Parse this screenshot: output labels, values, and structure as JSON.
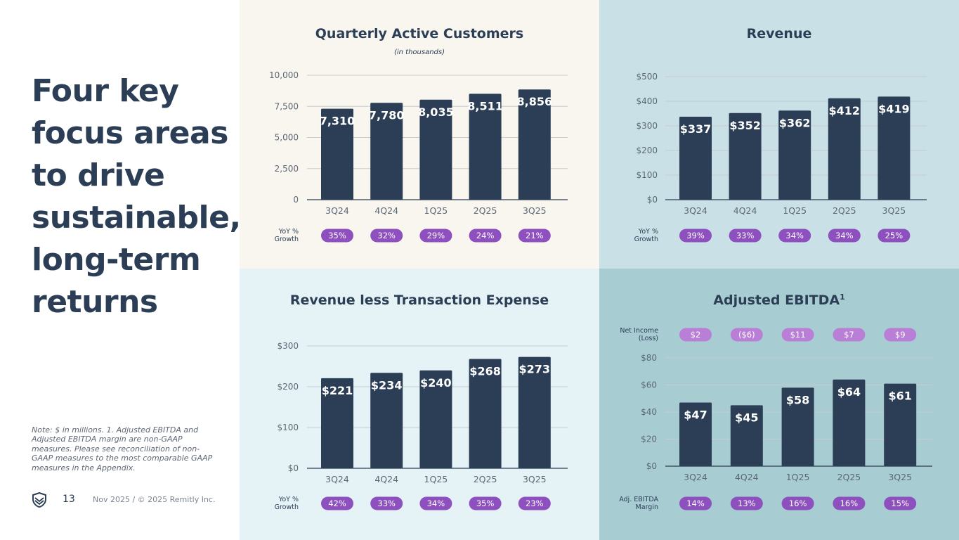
{
  "headline": "Four key focus areas to drive sustainable, long-term returns",
  "note": "Note: $ in millions. 1. Adjusted EBITDA and Adjusted EBITDA margin are non-GAAP measures. Please see reconciliation of non-GAAP measures to the most comparable GAAP measures in the Appendix.",
  "footer": {
    "page_number": "13",
    "text": "Nov 2025 / © 2025 Remitly Inc."
  },
  "colors": {
    "bar": "#2b3e55",
    "pill_dark": "#8e4fbf",
    "pill_light": "#b97fd6",
    "navy": "#2b3e55"
  },
  "chart_data": [
    {
      "id": "qac",
      "type": "bar",
      "title": "Quarterly Active Customers",
      "subtitle": "(in thousands)",
      "categories": [
        "3Q24",
        "4Q24",
        "1Q25",
        "2Q25",
        "3Q25"
      ],
      "values": [
        7310,
        7780,
        8035,
        8511,
        8856
      ],
      "value_labels": [
        "7,310",
        "7,780",
        "8,035",
        "8,511",
        "8,856"
      ],
      "ylim": [
        0,
        10000
      ],
      "yticks": [
        0,
        2500,
        5000,
        7500,
        10000
      ],
      "ytick_labels": [
        "0",
        "2,500",
        "5,000",
        "7,500",
        "10,000"
      ],
      "bottom_row": {
        "label": [
          "YoY %",
          "Growth"
        ],
        "values": [
          "35%",
          "32%",
          "29%",
          "24%",
          "21%"
        ]
      }
    },
    {
      "id": "rev",
      "type": "bar",
      "title": "Revenue",
      "categories": [
        "3Q24",
        "4Q24",
        "1Q25",
        "2Q25",
        "3Q25"
      ],
      "values": [
        337,
        352,
        362,
        412,
        419
      ],
      "value_labels": [
        "$337",
        "$352",
        "$362",
        "$412",
        "$419"
      ],
      "ylim": [
        0,
        500
      ],
      "yticks": [
        0,
        100,
        200,
        300,
        400,
        500
      ],
      "ytick_labels": [
        "$0",
        "$100",
        "$200",
        "$300",
        "$400",
        "$500"
      ],
      "bottom_row": {
        "label": [
          "YoY %",
          "Growth"
        ],
        "values": [
          "39%",
          "33%",
          "34%",
          "34%",
          "25%"
        ]
      }
    },
    {
      "id": "rlte",
      "type": "bar",
      "title": "Revenue less Transaction Expense",
      "categories": [
        "3Q24",
        "4Q24",
        "1Q25",
        "2Q25",
        "3Q25"
      ],
      "values": [
        221,
        234,
        240,
        268,
        273
      ],
      "value_labels": [
        "$221",
        "$234",
        "$240",
        "$268",
        "$273"
      ],
      "ylim": [
        0,
        300
      ],
      "yticks": [
        0,
        100,
        200,
        300
      ],
      "ytick_labels": [
        "$0",
        "$100",
        "$200",
        "$300"
      ],
      "bottom_row": {
        "label": [
          "YoY %",
          "Growth"
        ],
        "values": [
          "42%",
          "33%",
          "34%",
          "35%",
          "23%"
        ]
      }
    },
    {
      "id": "ebitda",
      "type": "bar",
      "title": "Adjusted EBITDA",
      "title_sup": "1",
      "categories": [
        "3Q24",
        "4Q24",
        "1Q25",
        "2Q25",
        "3Q25"
      ],
      "values": [
        47,
        45,
        58,
        64,
        61
      ],
      "value_labels": [
        "$47",
        "$45",
        "$58",
        "$64",
        "$61"
      ],
      "ylim": [
        0,
        80
      ],
      "yticks": [
        0,
        20,
        40,
        60,
        80
      ],
      "ytick_labels": [
        "$0",
        "$20",
        "$40",
        "$60",
        "$80"
      ],
      "top_row": {
        "label": [
          "Net Income",
          "(Loss)"
        ],
        "values": [
          "$2",
          "($6)",
          "$11",
          "$7",
          "$9"
        ]
      },
      "bottom_row": {
        "label": [
          "Adj. EBITDA",
          "Margin"
        ],
        "values": [
          "14%",
          "13%",
          "16%",
          "16%",
          "15%"
        ]
      }
    }
  ]
}
